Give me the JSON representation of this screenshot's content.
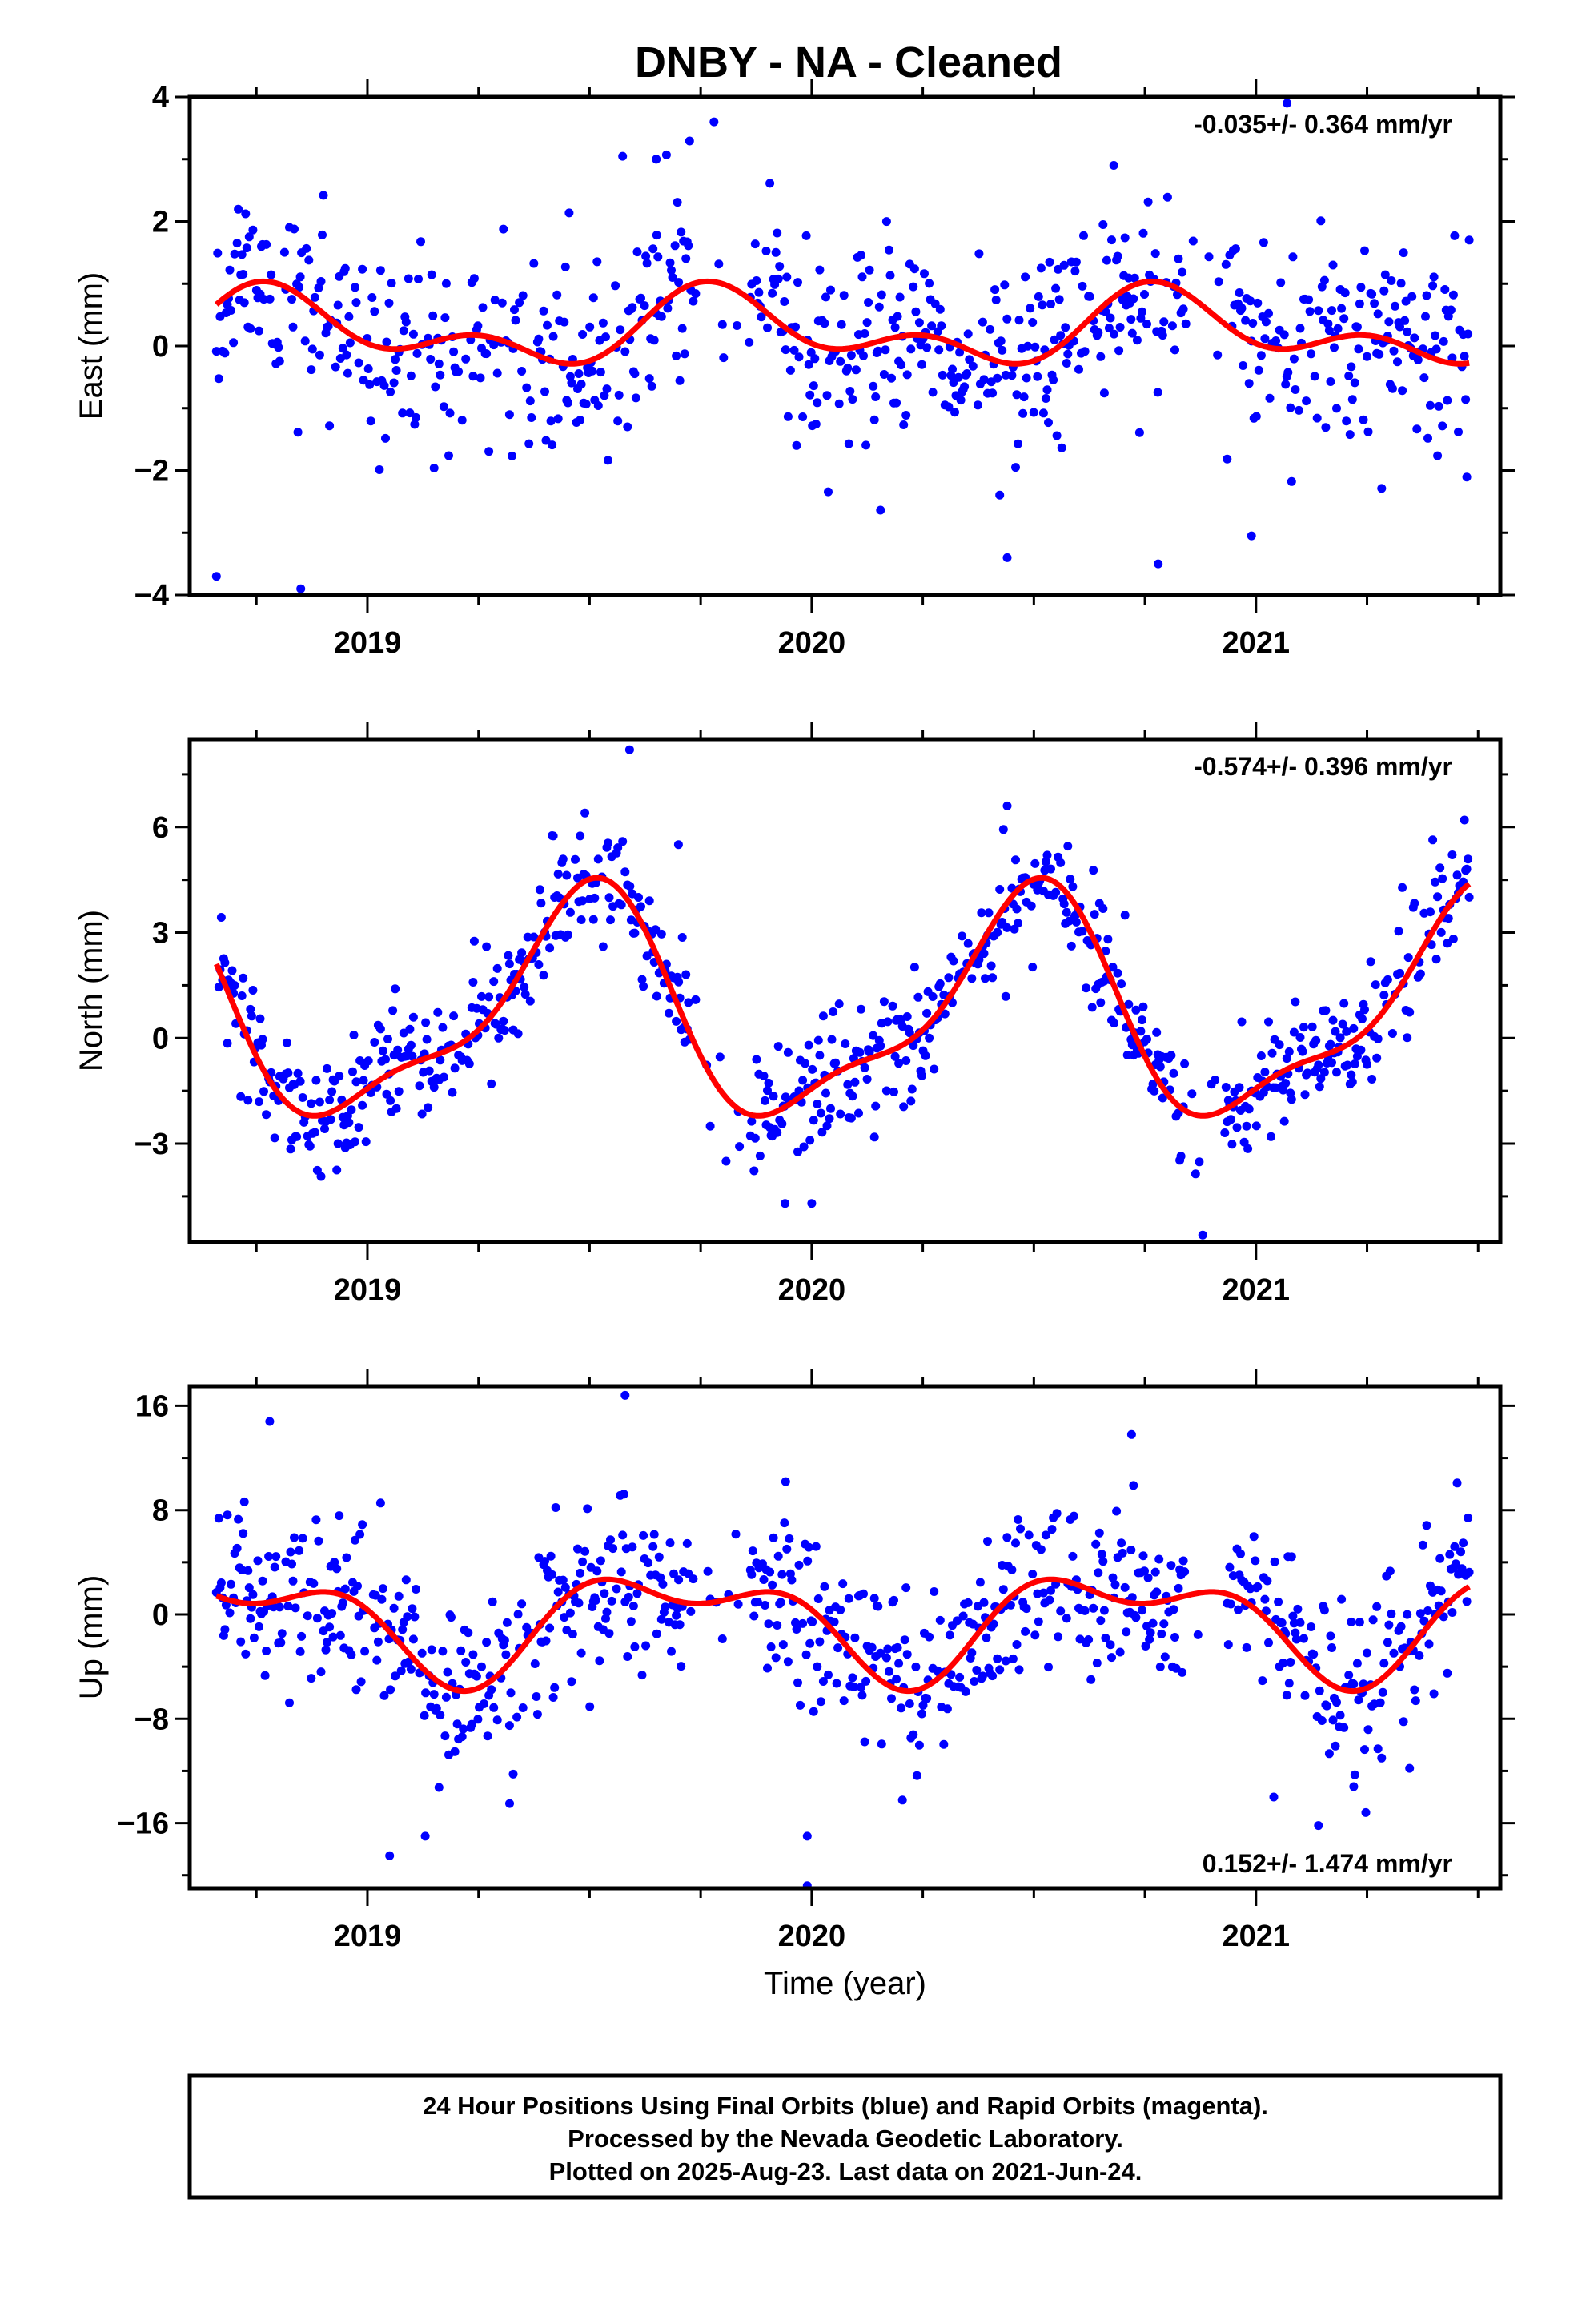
{
  "title": "DNBY  - NA - Cleaned",
  "footer": {
    "lines": [
      "24 Hour Positions Using Final Orbits (blue) and Rapid Orbits (magenta).",
      "Processed by the Nevada Geodetic Laboratory.",
      "Plotted on 2025-Aug-23. Last data on 2021-Jun-24."
    ]
  },
  "colors": {
    "points": "#0000ff",
    "fit": "#ff0000",
    "axes": "#000000"
  },
  "chart_data": [
    {
      "type": "scatter",
      "id": "east",
      "ylabel": "East (mm)",
      "xlabel": "",
      "rate_label": "-0.035+/- 0.364 mm/yr",
      "rate_position": "top-right",
      "xlim": [
        2018.6,
        2021.55
      ],
      "ylim": [
        -4,
        4
      ],
      "x_ticks": [
        2019,
        2020,
        2021
      ],
      "x_tick_labels": [
        "2019",
        "2020",
        "2021"
      ],
      "y_ticks": [
        -4,
        -2,
        0,
        2,
        4
      ],
      "y_tick_labels": [
        "−4",
        "−2",
        "0",
        "2",
        "4"
      ],
      "seed": 11,
      "model": {
        "offset": 0.25,
        "a1": 0.45,
        "t1": 2019.55,
        "a2": 0.35,
        "t2": 2019.63
      },
      "noise": 1.05,
      "outliers": [
        [
          2018.85,
          -3.9
        ],
        [
          2018.66,
          -3.7
        ],
        [
          2020.44,
          -3.4
        ],
        [
          2020.78,
          -3.5
        ],
        [
          2020.99,
          -3.05
        ],
        [
          2019.78,
          3.6
        ],
        [
          2021.07,
          3.9
        ],
        [
          2019.65,
          3.0
        ],
        [
          2020.68,
          2.9
        ]
      ],
      "grid": false,
      "series": [
        {
          "name": "",
          "kind": "daily positions",
          "color": "#0000ff"
        },
        {
          "name": "",
          "kind": "seasonal fit",
          "color": "#ff0000"
        }
      ]
    },
    {
      "type": "scatter",
      "id": "north",
      "ylabel": "North (mm)",
      "xlabel": "",
      "rate_label": "-0.574+/- 0.396 mm/yr",
      "rate_position": "top-right",
      "xlim": [
        2018.6,
        2021.55
      ],
      "ylim": [
        -5.8,
        8.5
      ],
      "x_ticks": [
        2019,
        2020,
        2021
      ],
      "x_tick_labels": [
        "2019",
        "2020",
        "2021"
      ],
      "y_ticks": [
        -3,
        0,
        3,
        6
      ],
      "y_tick_labels": [
        "−3",
        "0",
        "3",
        "6"
      ],
      "seed": 23,
      "model": {
        "offset": 0.7,
        "a1": 3.0,
        "t1": 2019.23,
        "a2": 1.0,
        "t2": 2019.42
      },
      "noise": 1.1,
      "outliers": [
        [
          2019.59,
          8.2
        ],
        [
          2020.44,
          6.6
        ],
        [
          2020.88,
          -5.6
        ],
        [
          2019.94,
          -4.7
        ],
        [
          2020.0,
          -4.7
        ],
        [
          2019.7,
          5.5
        ]
      ],
      "grid": false,
      "series": [
        {
          "name": "",
          "kind": "daily positions",
          "color": "#0000ff"
        },
        {
          "name": "",
          "kind": "seasonal fit",
          "color": "#ff0000"
        }
      ]
    },
    {
      "type": "scatter",
      "id": "up",
      "ylabel": "Up (mm)",
      "xlabel": "Time (year)",
      "rate_label": "0.152+/- 1.474 mm/yr",
      "rate_position": "bottom-right",
      "xlim": [
        2018.6,
        2021.55
      ],
      "ylim": [
        -21,
        17.5
      ],
      "x_ticks": [
        2019,
        2020,
        2021
      ],
      "x_tick_labels": [
        "2019",
        "2020",
        "2021"
      ],
      "y_ticks": [
        -16,
        -8,
        0,
        8,
        16
      ],
      "y_tick_labels": [
        "−16",
        "−8",
        "0",
        "8",
        "16"
      ],
      "seed": 37,
      "model": {
        "offset": -0.5,
        "a1": 3.4,
        "t1": 2019.45,
        "a2": 2.0,
        "t2": 2019.35
      },
      "noise": 4.0,
      "outliers": [
        [
          2019.58,
          16.8
        ],
        [
          2019.05,
          -18.5
        ],
        [
          2019.99,
          -17.0
        ],
        [
          2019.99,
          -20.8
        ],
        [
          2019.13,
          -17.0
        ],
        [
          2019.32,
          -14.5
        ],
        [
          2021.22,
          -13.2
        ],
        [
          2020.72,
          13.8
        ],
        [
          2018.78,
          14.8
        ],
        [
          2021.04,
          -14.0
        ]
      ],
      "grid": false,
      "series": [
        {
          "name": "",
          "kind": "daily positions",
          "color": "#0000ff"
        },
        {
          "name": "",
          "kind": "seasonal fit",
          "color": "#ff0000"
        }
      ]
    }
  ]
}
